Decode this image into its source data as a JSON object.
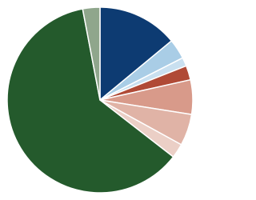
{
  "chart_data": {
    "type": "pie",
    "values": [
      14,
      3.5,
      1.5,
      2.5,
      6,
      5.5,
      2.5,
      61.5,
      3
    ],
    "colors": [
      "#0d3b72",
      "#a9cde6",
      "#c9e0f0",
      "#b04a36",
      "#d89a8a",
      "#e0b3a6",
      "#ebcfc6",
      "#245a2c",
      "#8fa68c"
    ]
  }
}
